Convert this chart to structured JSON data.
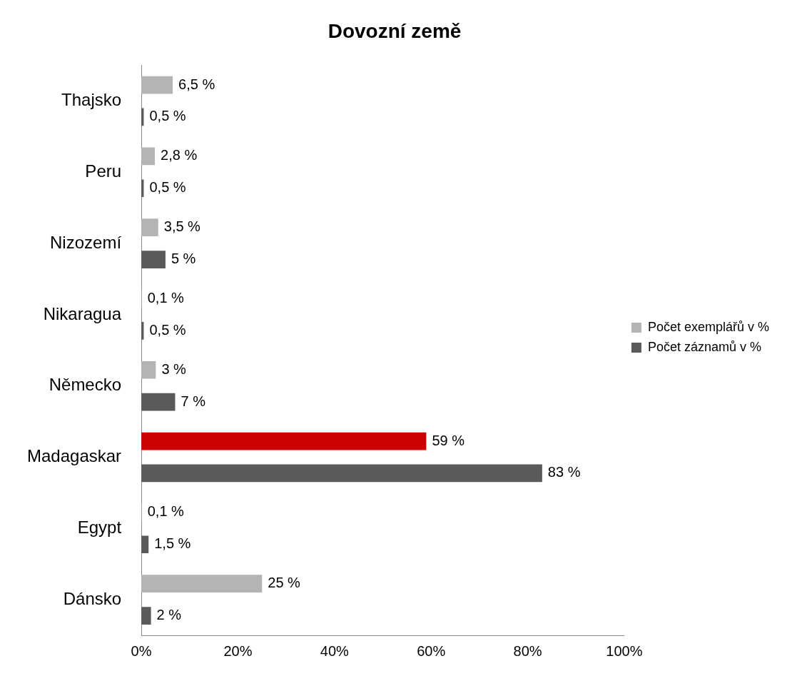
{
  "chart_data": {
    "type": "bar",
    "orientation": "horizontal",
    "title": "Dovozní země",
    "categories": [
      "Thajsko",
      "Peru",
      "Nizozemí",
      "Nikaragua",
      "Německo",
      "Madagaskar",
      "Egypt",
      "Dánsko"
    ],
    "series": [
      {
        "name": "Počet exemplářů v %",
        "color": "#b4b4b4",
        "colors": [
          "#b4b4b4",
          "#b4b4b4",
          "#b4b4b4",
          "#b4b4b4",
          "#b4b4b4",
          "#cc0000",
          "#b4b4b4",
          "#b4b4b4"
        ],
        "values": [
          6.5,
          2.8,
          3.5,
          0.1,
          3,
          59,
          0.1,
          25
        ],
        "value_labels": [
          "6,5 %",
          "2,8 %",
          "3,5 %",
          "0,1 %",
          "3 %",
          "59 %",
          "0,1 %",
          "25 %"
        ]
      },
      {
        "name": "Počet záznamů v %",
        "color": "#5a5a5a",
        "values": [
          0.5,
          0.5,
          5,
          0.5,
          7,
          83,
          1.5,
          2
        ],
        "value_labels": [
          "0,5 %",
          "0,5 %",
          "5 %",
          "0,5 %",
          "7 %",
          "83 %",
          "1,5 %",
          "2 %"
        ]
      }
    ],
    "xlim": [
      0,
      100
    ],
    "xticks": [
      {
        "value": 0,
        "label": "0%"
      },
      {
        "value": 20,
        "label": "20%"
      },
      {
        "value": 40,
        "label": "40%"
      },
      {
        "value": 60,
        "label": "60%"
      },
      {
        "value": 80,
        "label": "80%"
      },
      {
        "value": 100,
        "label": "100%"
      }
    ],
    "grid": false,
    "legend": "right"
  }
}
